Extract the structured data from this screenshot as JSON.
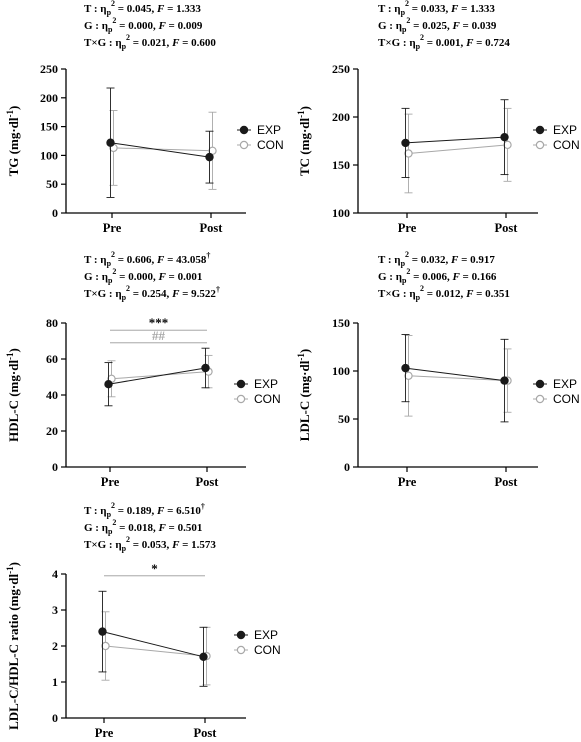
{
  "legend": [
    {
      "name": "EXP",
      "color": "#1a1a1a",
      "filled": true
    },
    {
      "name": "CON",
      "color": "#a8a8a8",
      "filled": false
    }
  ],
  "chart_data": [
    {
      "type": "line",
      "ylabel": "TG (mg·dl",
      "ylabel_sup": "-1",
      "categories": [
        "Pre",
        "Post"
      ],
      "ylim": [
        0,
        250
      ],
      "yticks": [
        0,
        50,
        100,
        150,
        200,
        250
      ],
      "series": [
        {
          "name": "EXP",
          "values": [
            122,
            97
          ],
          "errors": [
            95,
            45
          ]
        },
        {
          "name": "CON",
          "values": [
            113,
            108
          ],
          "errors": [
            65,
            67
          ]
        }
      ],
      "stats": [
        {
          "prefix": "T : η",
          "post": " = 0.045, ",
          "f": "F",
          "fval": " = 1.333",
          "mark": ""
        },
        {
          "prefix": "G : η",
          "post": " = 0.000, ",
          "f": "F",
          "fval": " = 0.009",
          "mark": ""
        },
        {
          "prefix": "T×G : η",
          "post": " = 0.021, ",
          "f": "F",
          "fval": " = 0.600",
          "mark": ""
        }
      ],
      "annotations": []
    },
    {
      "type": "line",
      "ylabel": "TC (mg·dl",
      "ylabel_sup": "-1",
      "categories": [
        "Pre",
        "Post"
      ],
      "ylim": [
        100,
        250
      ],
      "yticks": [
        100,
        150,
        200,
        250
      ],
      "series": [
        {
          "name": "EXP",
          "values": [
            173,
            179
          ],
          "errors": [
            36,
            39
          ]
        },
        {
          "name": "CON",
          "values": [
            162,
            171
          ],
          "errors": [
            41,
            38
          ]
        }
      ],
      "stats": [
        {
          "prefix": "T : η",
          "post": " = 0.033, ",
          "f": "F",
          "fval": " = 1.333",
          "mark": ""
        },
        {
          "prefix": "G : η",
          "post": " = 0.025, ",
          "f": "F",
          "fval": " = 0.039",
          "mark": ""
        },
        {
          "prefix": "T×G : η",
          "post": " = 0.001, ",
          "f": "F",
          "fval": " = 0.724",
          "mark": ""
        }
      ],
      "annotations": []
    },
    {
      "type": "line",
      "ylabel": "HDL-C (mg·dl",
      "ylabel_sup": "-1",
      "categories": [
        "Pre",
        "Post"
      ],
      "ylim": [
        0,
        80
      ],
      "yticks": [
        0,
        20,
        40,
        60,
        80
      ],
      "series": [
        {
          "name": "EXP",
          "values": [
            46,
            55
          ],
          "errors": [
            12,
            11
          ]
        },
        {
          "name": "CON",
          "values": [
            49,
            53
          ],
          "errors": [
            10,
            9
          ]
        }
      ],
      "stats": [
        {
          "prefix": "T : η",
          "post": " = 0.606, ",
          "f": "F",
          "fval": " = 43.058",
          "mark": "†"
        },
        {
          "prefix": "G : η",
          "post": " = 0.000, ",
          "f": "F",
          "fval": " = 0.001",
          "mark": ""
        },
        {
          "prefix": "T×G : η",
          "post": " = 0.254, ",
          "f": "F",
          "fval": " = 9.522",
          "mark": "†"
        }
      ],
      "annotations": [
        {
          "label": "***",
          "color": "#000000",
          "y": 76
        },
        {
          "label": "##",
          "color": "#a8a8a8",
          "y": 69
        }
      ]
    },
    {
      "type": "line",
      "ylabel": "LDL-C (mg·dl",
      "ylabel_sup": "-1",
      "categories": [
        "Pre",
        "Post"
      ],
      "ylim": [
        0,
        150
      ],
      "yticks": [
        0,
        50,
        100,
        150
      ],
      "series": [
        {
          "name": "EXP",
          "values": [
            103,
            90
          ],
          "errors": [
            35,
            43
          ]
        },
        {
          "name": "CON",
          "values": [
            95,
            90
          ],
          "errors": [
            42,
            33
          ]
        }
      ],
      "stats": [
        {
          "prefix": "T : η",
          "post": " = 0.032, ",
          "f": "F",
          "fval": " = 0.917",
          "mark": ""
        },
        {
          "prefix": "G : η",
          "post": " = 0.006, ",
          "f": "F",
          "fval": " = 0.166",
          "mark": ""
        },
        {
          "prefix": "T×G : η",
          "post": " = 0.012, ",
          "f": "F",
          "fval": " = 0.351",
          "mark": ""
        }
      ],
      "annotations": []
    },
    {
      "type": "line",
      "ylabel": "LDL-C/HDL-C ratio (mg·dl",
      "ylabel_sup": "-1",
      "categories": [
        "Pre",
        "Post"
      ],
      "ylim": [
        0,
        4
      ],
      "yticks": [
        0,
        1,
        2,
        3,
        4
      ],
      "series": [
        {
          "name": "EXP",
          "values": [
            2.4,
            1.7
          ],
          "errors": [
            1.12,
            0.82
          ]
        },
        {
          "name": "CON",
          "values": [
            2.0,
            1.72
          ],
          "errors": [
            0.95,
            0.8
          ]
        }
      ],
      "stats": [
        {
          "prefix": "T : η",
          "post": " = 0.189, ",
          "f": "F",
          "fval": " = 6.510",
          "mark": "†"
        },
        {
          "prefix": "G : η",
          "post": " = 0.018, ",
          "f": "F",
          "fval": " = 0.501",
          "mark": ""
        },
        {
          "prefix": "T×G : η",
          "post": " = 0.053, ",
          "f": "F",
          "fval": " = 1.573",
          "mark": ""
        }
      ],
      "annotations": [
        {
          "label": "*",
          "color": "#000000",
          "y": 3.95
        }
      ]
    }
  ]
}
